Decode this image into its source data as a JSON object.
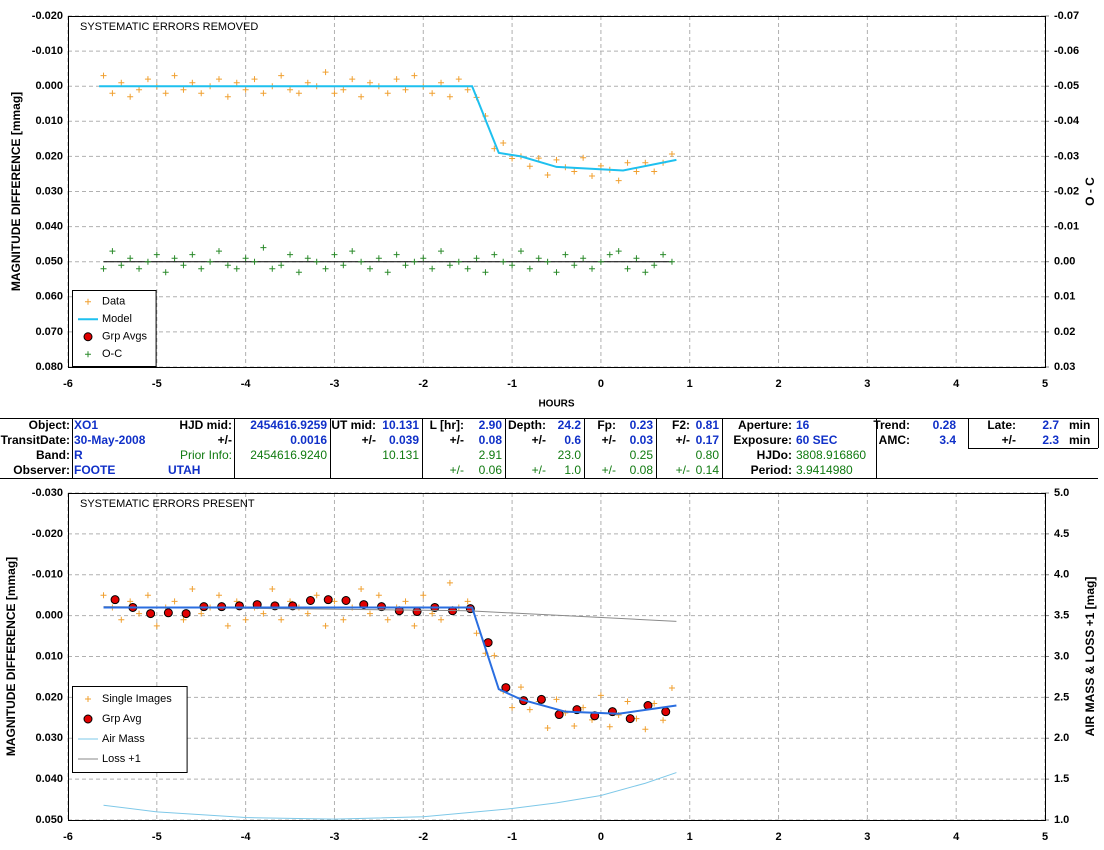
{
  "chart_data": [
    {
      "type": "scatter",
      "title": "SYSTEMATIC ERRORS REMOVED",
      "y_label": "MAGNITUDE DIFFERENCE [mmag]",
      "y2_label": "O - C",
      "x_label": "HOURS",
      "xlim": [
        -6,
        5
      ],
      "xticks": [
        -6,
        -5,
        -4,
        -3,
        -2,
        -1,
        0,
        1,
        2,
        3,
        4,
        5
      ],
      "ylim": [
        -0.02,
        0.08
      ],
      "y_inverted": true,
      "yticks": [
        {
          "value": -0.02,
          "label": "-0.020"
        },
        {
          "value": -0.01,
          "label": "-0.010"
        },
        {
          "value": 0,
          "label": "0.000"
        },
        {
          "value": 0.01,
          "label": "0.010"
        },
        {
          "value": 0.02,
          "label": "0.020"
        },
        {
          "value": 0.03,
          "label": "0.030"
        },
        {
          "value": 0.04,
          "label": "0.040"
        },
        {
          "value": 0.05,
          "label": "0.050"
        },
        {
          "value": 0.06,
          "label": "0.060"
        },
        {
          "value": 0.07,
          "label": "0.070"
        },
        {
          "value": 0.08,
          "label": "0.080"
        }
      ],
      "y2lim": [
        -0.07,
        0.03
      ],
      "y2_inverted": true,
      "y2ticks": [
        -0.07,
        -0.06,
        -0.05,
        -0.04,
        -0.03,
        -0.02,
        -0.01,
        {
          "value": 0,
          "label": "0.00"
        },
        0.01,
        0.02,
        0.03
      ],
      "grid": true,
      "legend": "lower left",
      "x": [
        -5.6,
        -5.5,
        -5.4,
        -5.3,
        -5.2,
        -5.1,
        -5,
        -4.9,
        -4.8,
        -4.7,
        -4.6,
        -4.5,
        -4.4,
        -4.3,
        -4.2,
        -4.1,
        -4,
        -3.9,
        -3.8,
        -3.7,
        -3.6,
        -3.5,
        -3.4,
        -3.3,
        -3.2,
        -3.1,
        -3,
        -2.9,
        -2.8,
        -2.7,
        -2.6,
        -2.5,
        -2.4,
        -2.3,
        -2.2,
        -2.1,
        -2,
        -1.9,
        -1.8,
        -1.7,
        -1.6,
        -1.5,
        -1.4,
        -1.3,
        -1.2,
        -1.1,
        -1,
        -0.9,
        -0.8,
        -0.7,
        -0.6,
        -0.5,
        -0.4,
        -0.3,
        -0.2,
        -0.1,
        0,
        0.1,
        0.2,
        0.3,
        0.4,
        0.5,
        0.6,
        0.7,
        0.8
      ],
      "series": [
        {
          "name": "Data",
          "type": "scatter",
          "marker": "+",
          "color": "#f0a030",
          "values": [
            -0.003,
            0.002,
            -0.001,
            0.003,
            0.001,
            -0.002,
            0,
            0.002,
            -0.003,
            0.001,
            -0.001,
            0.002,
            0,
            -0.002,
            0.003,
            -0.001,
            0.001,
            -0.002,
            0.002,
            0,
            -0.003,
            0.001,
            0.002,
            -0.001,
            0,
            -0.004,
            0.002,
            0.001,
            -0.002,
            0.003,
            -0.001,
            0,
            0.002,
            -0.002,
            0.001,
            -0.003,
            0,
            0.002,
            -0.001,
            0.003,
            -0.002,
            0.001,
            0.0032,
            0.0085,
            0.0178,
            0.0162,
            0.0206,
            0.02,
            0.0228,
            0.0205,
            0.0253,
            0.021,
            0.0231,
            0.0243,
            0.0204,
            0.0256,
            0.0227,
            0.0238,
            0.0269,
            0.0218,
            0.0243,
            0.0218,
            0.0243,
            0.0218,
            0.0193
          ]
        },
        {
          "name": "Model",
          "type": "line",
          "color": "#1ec0ef",
          "width": 2,
          "x": [
            -5.65,
            -1.45,
            -1.15,
            -0.9,
            -0.5,
            0.25,
            0.85
          ],
          "values": [
            0,
            0,
            0.019,
            0.02,
            0.023,
            0.024,
            0.021
          ]
        },
        {
          "name": "Grp Avgs",
          "type": "scatter",
          "marker": "circle",
          "color": "#e00000"
        },
        {
          "name": "O-C",
          "type": "scatter",
          "marker": "+",
          "color": "#2a8a2a",
          "axis": "y2",
          "values": [
            0.002,
            -0.003,
            0.001,
            -0.001,
            0.002,
            0,
            -0.002,
            0.003,
            -0.001,
            0.001,
            -0.002,
            0.002,
            0,
            -0.003,
            0.001,
            0.002,
            -0.001,
            0,
            -0.004,
            0.002,
            0.001,
            -0.002,
            0.003,
            -0.001,
            0,
            0.002,
            -0.002,
            0.001,
            -0.003,
            0,
            0.002,
            -0.001,
            0.003,
            -0.002,
            0.001,
            0,
            -0.001,
            0.002,
            -0.003,
            0.001,
            0,
            0.002,
            -0.001,
            0.003,
            -0.002,
            0,
            0.001,
            -0.003,
            0.002,
            -0.001,
            0,
            0.003,
            -0.002,
            0.001,
            -0.001,
            0.002,
            0,
            -0.002,
            -0.003,
            0.002,
            -0.001,
            0.003,
            0.001,
            -0.002,
            0
          ]
        }
      ]
    },
    {
      "type": "scatter",
      "title": "SYSTEMATIC ERRORS PRESENT",
      "y_label": "MAGNITUDE DIFFERENCE [mmag]",
      "y2_label": "AIR MASS & LOSS +1 [mag]",
      "xlim": [
        -6,
        5
      ],
      "xticks": [
        -6,
        -5,
        -4,
        -3,
        -2,
        -1,
        0,
        1,
        2,
        3,
        4,
        5
      ],
      "ylim": [
        -0.03,
        0.05
      ],
      "y_inverted": true,
      "yticks": [
        {
          "value": -0.03,
          "label": "-0.030"
        },
        {
          "value": -0.02,
          "label": "-0.020"
        },
        {
          "value": -0.01,
          "label": "-0.010"
        },
        {
          "value": 0,
          "label": "0.000"
        },
        {
          "value": 0.01,
          "label": "0.010"
        },
        {
          "value": 0.02,
          "label": "0.020"
        },
        {
          "value": 0.03,
          "label": "0.030"
        },
        {
          "value": 0.04,
          "label": "0.040"
        },
        {
          "value": 0.05,
          "label": "0.050"
        }
      ],
      "y2lim": [
        1,
        5
      ],
      "y2_inverted": false,
      "y2ticks": [
        {
          "value": 1,
          "label": "1.0"
        },
        1.5,
        {
          "value": 2,
          "label": "2.0"
        },
        2.5,
        {
          "value": 3,
          "label": "3.0"
        },
        3.5,
        {
          "value": 4,
          "label": "4.0"
        },
        4.5,
        {
          "value": 5,
          "label": "5.0"
        }
      ],
      "grid": true,
      "legend": "lower left",
      "x": [
        -5.6,
        -5.5,
        -5.4,
        -5.3,
        -5.2,
        -5.1,
        -5,
        -4.9,
        -4.8,
        -4.7,
        -4.6,
        -4.5,
        -4.4,
        -4.3,
        -4.2,
        -4.1,
        -4,
        -3.9,
        -3.8,
        -3.7,
        -3.6,
        -3.5,
        -3.4,
        -3.3,
        -3.2,
        -3.1,
        -3,
        -2.9,
        -2.8,
        -2.7,
        -2.6,
        -2.5,
        -2.4,
        -2.3,
        -2.2,
        -2.1,
        -2,
        -1.9,
        -1.8,
        -1.7,
        -1.6,
        -1.5,
        -1.4,
        -1.3,
        -1.2,
        -1.1,
        -1,
        -0.9,
        -0.8,
        -0.7,
        -0.6,
        -0.5,
        -0.4,
        -0.3,
        -0.2,
        -0.1,
        0,
        0.1,
        0.2,
        0.3,
        0.4,
        0.5,
        0.6,
        0.7,
        0.8
      ],
      "series": [
        {
          "name": "Single Images",
          "type": "scatter",
          "marker": "+",
          "color": "#f0a030",
          "values": [
            -0.005,
            -0.002,
            0.001,
            -0.0035,
            -0.0005,
            -0.005,
            0.0025,
            -0.002,
            -0.0035,
            0.001,
            -0.0065,
            -0.0005,
            -0.002,
            -0.005,
            0.0025,
            -0.0035,
            0.001,
            -0.002,
            -0.0005,
            -0.0065,
            0.001,
            -0.0035,
            -0.002,
            -0.0005,
            -0.005,
            0.0025,
            -0.0035,
            0.001,
            -0.002,
            -0.0065,
            -0.0005,
            -0.005,
            0.001,
            -0.002,
            -0.0035,
            0.0025,
            -0.005,
            -0.0005,
            0.001,
            -0.008,
            -0.002,
            -0.0035,
            0.0043,
            0.0092,
            0.0098,
            0.0185,
            0.0225,
            0.0175,
            0.023,
            0.021,
            0.0275,
            0.0205,
            0.0238,
            0.027,
            0.0225,
            0.0255,
            0.0195,
            0.0272,
            0.0243,
            0.021,
            0.0252,
            0.0278,
            0.0215,
            0.0256,
            0.0177
          ]
        },
        {
          "name": "Grp Avg",
          "type": "scatter",
          "marker": "circle",
          "color": "#e00000",
          "x": [
            -5.47,
            -5.27,
            -5.07,
            -4.87,
            -4.67,
            -4.47,
            -4.27,
            -4.07,
            -3.87,
            -3.67,
            -3.47,
            -3.27,
            -3.07,
            -2.87,
            -2.67,
            -2.47,
            -2.27,
            -2.07,
            -1.87,
            -1.67,
            -1.47,
            -1.27,
            -1.07,
            -0.87,
            -0.67,
            -0.47,
            -0.27,
            -0.07,
            0.13,
            0.33,
            0.53,
            0.73
          ],
          "values": [
            -0.0039,
            -0.002,
            -0.0005,
            -0.0007,
            -0.0005,
            -0.0022,
            -0.0022,
            -0.0024,
            -0.0027,
            -0.0024,
            -0.0024,
            -0.0037,
            -0.0039,
            -0.0037,
            -0.0027,
            -0.0022,
            -0.0012,
            -0.001,
            -0.002,
            -0.0012,
            -0.0017,
            0.0066,
            0.0176,
            0.0208,
            0.0205,
            0.0242,
            0.023,
            0.0245,
            0.0235,
            0.0252,
            0.022,
            0.0235
          ],
          "errors": [
            0.001,
            0.001,
            0.001,
            0.001,
            0.001,
            0.001,
            0.001,
            0.001,
            0.001,
            0.001,
            0.001,
            0.001,
            0.001,
            0.001,
            0.001,
            0.001,
            0.001,
            0.001,
            0.001,
            0.001,
            0.001,
            0.001,
            0.001,
            0.001,
            0.001,
            0.001,
            0.001,
            0.001,
            0.001,
            0.001,
            0.001,
            0.001
          ]
        },
        {
          "name": "Air Mass",
          "type": "line",
          "color": "#7ec8e8",
          "width": 1,
          "axis": "y2",
          "x": [
            -5.6,
            -5,
            -4,
            -3,
            -2,
            -1,
            -0.5,
            0,
            0.5,
            0.85
          ],
          "values": [
            1.18,
            1.1,
            1.03,
            1.01,
            1.04,
            1.14,
            1.21,
            1.3,
            1.45,
            1.58
          ]
        },
        {
          "name": "Loss +1",
          "type": "line",
          "color": "#8a8a8a",
          "width": 1,
          "axis": "y2",
          "x": [
            -5.6,
            -1.5,
            0.85
          ],
          "values": [
            3.61,
            3.56,
            3.43
          ]
        },
        {
          "name": "Model",
          "type": "line",
          "color": "#2a6ee0",
          "width": 2,
          "in_legend": false,
          "x": [
            -5.6,
            -1.45,
            -1.15,
            -0.9,
            -0.4,
            0.2,
            0.85
          ],
          "values": [
            -0.002,
            -0.002,
            0.018,
            0.0205,
            0.0235,
            0.024,
            0.022
          ]
        }
      ]
    }
  ],
  "table": {
    "rows": [
      [
        "Object:",
        "XO1",
        "HJD mid:",
        "2454616.9259",
        "UT mid:",
        "10.131",
        "L [hr]:",
        "2.90",
        "Depth:",
        "24.2",
        "Fp:",
        "0.23",
        "F2:",
        "0.81",
        "Aperture:",
        "16",
        "Trend:",
        "0.28",
        "Late:",
        "2.7",
        "min"
      ],
      [
        "TransitDate:",
        "30-May-2008",
        "+/-",
        "0.0016",
        "+/-",
        "0.039",
        "+/-",
        "0.08",
        "+/-",
        "0.6",
        "+/-",
        "0.03",
        "+/-",
        "0.17",
        "Exposure:",
        "60 SEC",
        "AMC:",
        "3.4",
        "+/-",
        "2.3",
        "min"
      ],
      [
        "Band:",
        "R",
        "Prior Info:",
        "2454616.9240",
        "10.131",
        "2.91",
        "23.0",
        "0.25",
        "0.80",
        "HJDo:",
        "3808.916860"
      ],
      [
        "Observer:",
        "FOOTE",
        "UTAH",
        "+/-",
        "0.06",
        "+/-",
        "1.0",
        "+/-",
        "0.08",
        "+/-",
        "0.14",
        "Period:",
        "3.9414980"
      ]
    ]
  }
}
